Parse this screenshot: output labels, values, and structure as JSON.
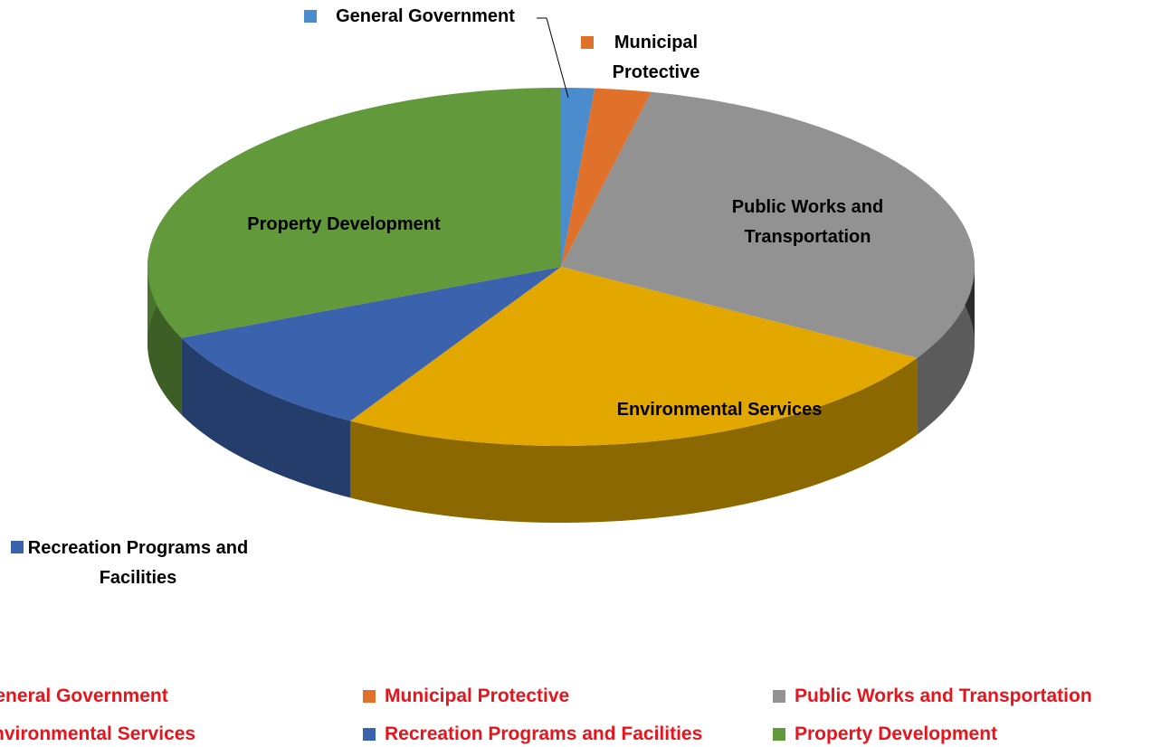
{
  "chart_data": {
    "type": "pie3d",
    "categories": [
      "General Government",
      "Municipal Protective",
      "Public Works and Transportation",
      "Environmental Services",
      "Recreation Programs and Facilities",
      "Property Development"
    ],
    "values": [
      1.3,
      2.2,
      30,
      25,
      10,
      31.5
    ],
    "colors": [
      "#4a8ccc",
      "#e0712a",
      "#929292",
      "#e2a800",
      "#3a62ad",
      "#62993b"
    ],
    "legend": "bottom"
  }
}
